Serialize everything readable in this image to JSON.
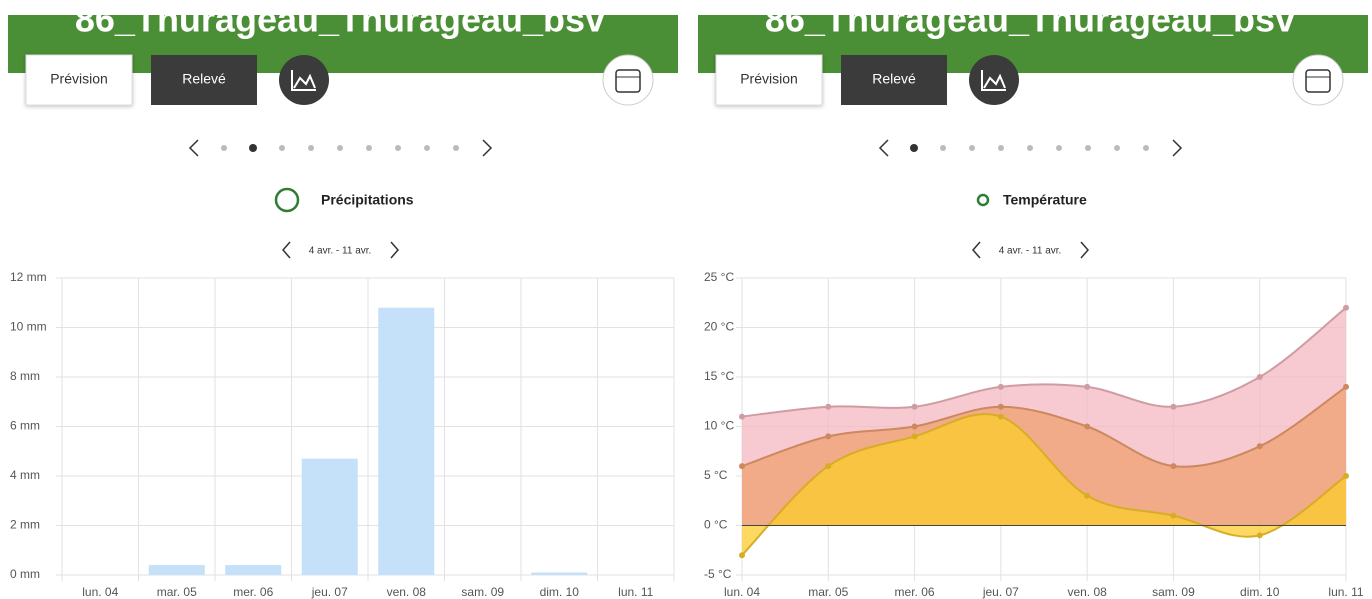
{
  "panels": [
    {
      "title": "86_Thurageau_Thurageau_bsv",
      "tabs": [
        "Prévision",
        "Relevé"
      ],
      "section": "Précipitations",
      "range": "4 avr. - 11 avr."
    },
    {
      "title": "86_Thurageau_Thurageau_bsv",
      "tabs": [
        "Prévision",
        "Relevé"
      ],
      "section": "Température",
      "range": "4 avr. - 11 avr."
    }
  ],
  "chart_data": [
    {
      "type": "bar",
      "categories": [
        "lun. 04",
        "mar. 05",
        "mer. 06",
        "jeu. 07",
        "ven. 08",
        "sam. 09",
        "dim. 10",
        "lun. 11"
      ],
      "values": [
        0,
        0.4,
        0.4,
        4.7,
        10.8,
        0,
        0.1,
        0
      ],
      "color": "#c5e0f9",
      "ylim": [
        0,
        12
      ],
      "yticks": [
        {
          "value": 0,
          "label": "0 mm"
        },
        {
          "value": 2,
          "label": "2 mm"
        },
        {
          "value": 4,
          "label": "4 mm"
        },
        {
          "value": 6,
          "label": "6 mm"
        },
        {
          "value": 8,
          "label": "8 mm"
        },
        {
          "value": 10,
          "label": "10 mm"
        },
        {
          "value": 12,
          "label": "12 mm"
        }
      ],
      "grid": true
    },
    {
      "type": "area",
      "categories": [
        "lun. 04",
        "mar. 05",
        "mer. 06",
        "jeu. 07",
        "ven. 08",
        "sam. 09",
        "dim. 10",
        "lun. 11"
      ],
      "series": [
        {
          "color": "#f3b8c0",
          "values": [
            11,
            12,
            12,
            14,
            14,
            12,
            15,
            22
          ]
        },
        {
          "color": "#f0a070",
          "values": [
            6,
            9,
            10,
            12,
            10,
            6,
            8,
            14
          ]
        },
        {
          "color": "#fccc2c",
          "values": [
            -3,
            6,
            9,
            11,
            3,
            1,
            -1,
            5
          ]
        }
      ],
      "ylim": [
        -5,
        25
      ],
      "yticks": [
        {
          "value": -5,
          "label": "-5 °C"
        },
        {
          "value": 0,
          "label": "0 °C"
        },
        {
          "value": 5,
          "label": "5 °C"
        },
        {
          "value": 10,
          "label": "10 °C"
        },
        {
          "value": 15,
          "label": "15 °C"
        },
        {
          "value": 20,
          "label": "20 °C"
        },
        {
          "value": 25,
          "label": "25 °C"
        }
      ],
      "grid": true
    }
  ]
}
